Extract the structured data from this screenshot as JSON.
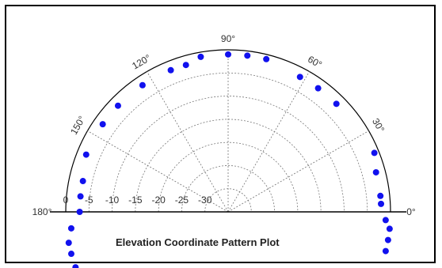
{
  "chart_data": {
    "type": "scatter",
    "projection": "polar-half",
    "title": "Elevation Coordinate Pattern Plot",
    "angle_unit": "degrees",
    "angle_range": [
      0,
      180
    ],
    "radius_range": [
      -35,
      0
    ],
    "radial_tick_labels": [
      "0",
      "-5",
      "-10",
      "-15",
      "-20",
      "-25",
      "-30"
    ],
    "angular_tick_labels": [
      {
        "angle": 0,
        "text": "0°"
      },
      {
        "angle": 30,
        "text": "30°"
      },
      {
        "angle": 60,
        "text": "60°"
      },
      {
        "angle": 90,
        "text": "90°"
      },
      {
        "angle": 120,
        "text": "120°"
      },
      {
        "angle": 150,
        "text": "150°"
      },
      {
        "angle": 180,
        "text": "180°"
      }
    ],
    "grid": true,
    "marker_color": "#1111ee",
    "series": [
      {
        "points": [
          {
            "angle": 90,
            "r": -1
          },
          {
            "angle": 83,
            "r": -1
          },
          {
            "angle": 76,
            "r": -1
          },
          {
            "angle": 62,
            "r": -2
          },
          {
            "angle": 54,
            "r": -2
          },
          {
            "angle": 45,
            "r": -2
          },
          {
            "angle": 22,
            "r": -1
          },
          {
            "angle": 15,
            "r": -2
          },
          {
            "angle": 6,
            "r": -2
          },
          {
            "angle": 3,
            "r": -2
          },
          {
            "angle": -3,
            "r": -1
          },
          {
            "angle": -6,
            "r": 0
          },
          {
            "angle": -10,
            "r": 0
          },
          {
            "angle": -14,
            "r": 0
          },
          {
            "angle": 100,
            "r": -1
          },
          {
            "angle": 106,
            "r": -2
          },
          {
            "angle": 112,
            "r": -2
          },
          {
            "angle": 124,
            "r": -2
          },
          {
            "angle": 136,
            "r": -2
          },
          {
            "angle": 145,
            "r": -2
          },
          {
            "angle": 158,
            "r": -2
          },
          {
            "angle": 168,
            "r": -3
          },
          {
            "angle": 174,
            "r": -3
          },
          {
            "angle": 180,
            "r": -3
          },
          {
            "angle": 186,
            "r": -1
          },
          {
            "angle": 191,
            "r": 0
          },
          {
            "angle": 195,
            "r": 0
          },
          {
            "angle": 200,
            "r": 0
          }
        ]
      }
    ]
  }
}
